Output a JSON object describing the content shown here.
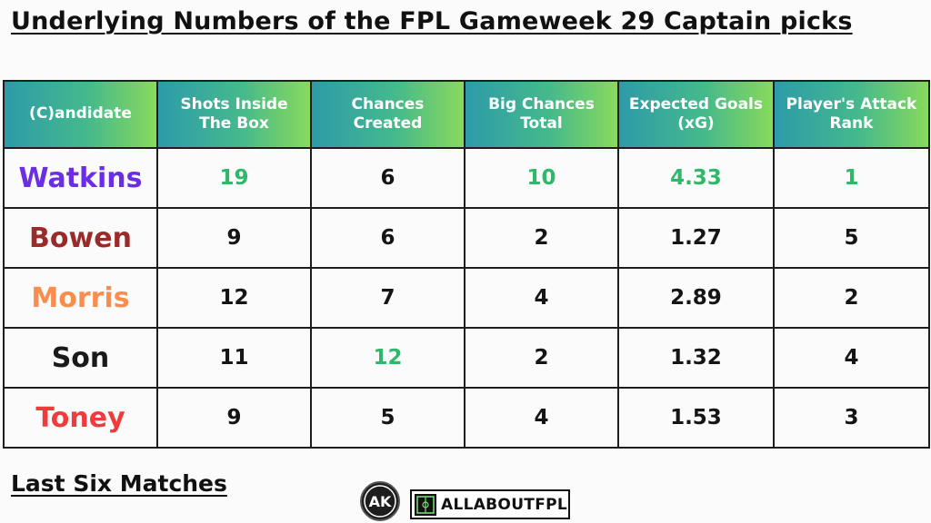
{
  "title": "Underlying Numbers of the FPL Gameweek 29 Captain picks",
  "columns": [
    "(C)andidate",
    "Shots Inside\nThe Box",
    "Chances\nCreated",
    "Big Chances\nTotal",
    "Expected Goals\n(xG)",
    "Player's Attack\nRank"
  ],
  "rows": [
    {
      "name": "Watkins",
      "name_color": "#6b2ee0",
      "shots": "19",
      "chances": "6",
      "big_chances": "10",
      "xg": "4.33",
      "rank": "1",
      "highlight": [
        "shots",
        "big_chances",
        "xg",
        "rank"
      ]
    },
    {
      "name": "Bowen",
      "name_color": "#9b2a2a",
      "shots": "9",
      "chances": "6",
      "big_chances": "2",
      "xg": "1.27",
      "rank": "5",
      "highlight": []
    },
    {
      "name": "Morris",
      "name_color": "#f98d4e",
      "shots": "12",
      "chances": "7",
      "big_chances": "4",
      "xg": "2.89",
      "rank": "2",
      "highlight": []
    },
    {
      "name": "Son",
      "name_color": "#1a1a1a",
      "shots": "11",
      "chances": "12",
      "big_chances": "2",
      "xg": "1.32",
      "rank": "4",
      "highlight": [
        "chances"
      ]
    },
    {
      "name": "Toney",
      "name_color": "#ef3b3b",
      "shots": "9",
      "chances": "5",
      "big_chances": "4",
      "xg": "1.53",
      "rank": "3",
      "highlight": []
    }
  ],
  "highlight_color": "#2fb86a",
  "footer": {
    "subtitle": "Last Six Matches",
    "logo_monogram": "AK",
    "logo_wordmark": "ALLABOUTFPL"
  }
}
